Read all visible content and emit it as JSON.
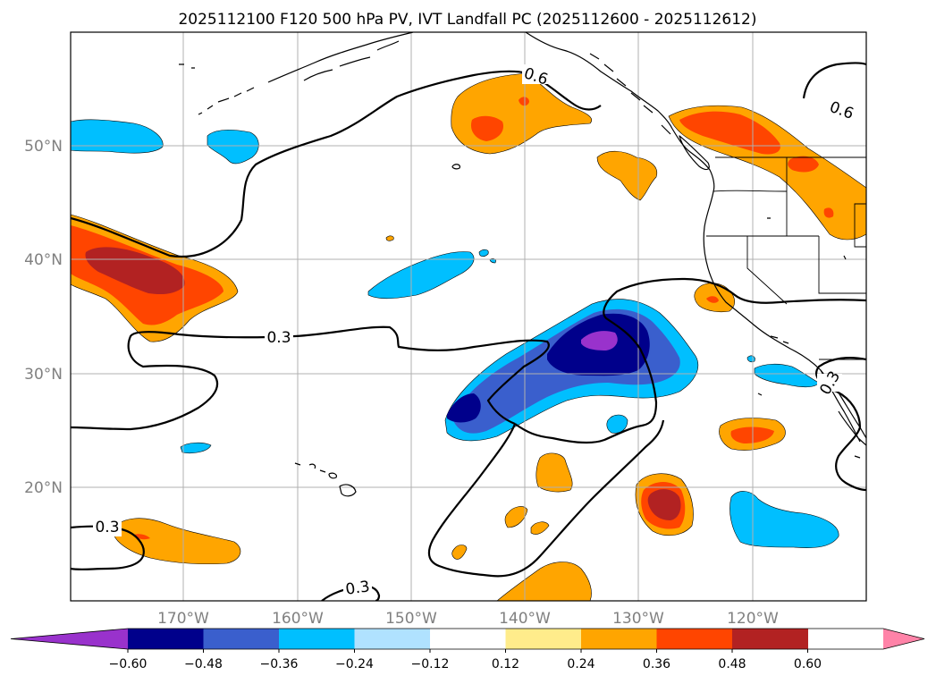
{
  "title": "2025112100 F120 500 hPa PV, IVT Landfall PC (2025112600 - 2025112612)",
  "latitude_labels": [
    "50°N",
    "40°N",
    "30°N",
    "20°N"
  ],
  "longitude_labels": [
    "170°W",
    "160°W",
    "150°W",
    "140°W",
    "130°W",
    "120°W"
  ],
  "contour_labels": [
    "0.6",
    "0.6",
    "0.3",
    "0.3",
    "0.3",
    "0.3"
  ],
  "colorbar": {
    "ticks": [
      "−0.60",
      "−0.48",
      "−0.36",
      "−0.24",
      "−0.12",
      "0.12",
      "0.24",
      "0.36",
      "0.48",
      "0.60"
    ],
    "colors": [
      "#9932cc",
      "#00008b",
      "#3a5fcd",
      "#00bfff",
      "#b0e2ff",
      "#ffffff",
      "#ffec8b",
      "#ffa500",
      "#ff4500",
      "#b22222",
      "#ff83a8"
    ]
  },
  "legend_colors": {
    "pv_contour": "#000000",
    "gridline": "#b0b0b0",
    "tick_label": "#808080"
  }
}
